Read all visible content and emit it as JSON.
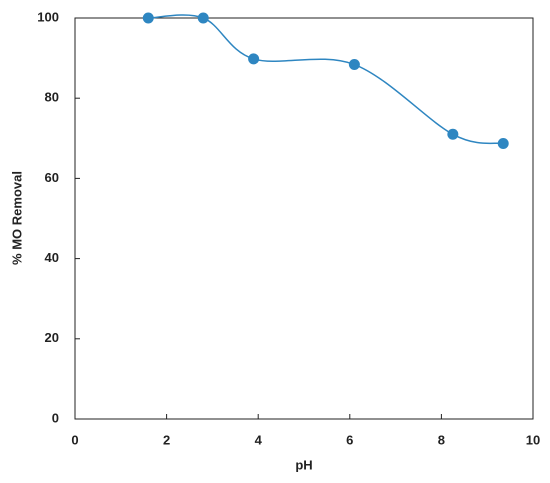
{
  "chart_data": {
    "type": "scatter",
    "x_label": "pH",
    "y_label": "% MO  Removal",
    "series": [
      {
        "name": "% MO Removal",
        "color": "#2e86c1",
        "x": [
          1.6,
          2.8,
          3.9,
          6.1,
          8.25,
          9.35
        ],
        "values": [
          100,
          100,
          89.8,
          88.4,
          71,
          68.7
        ]
      }
    ],
    "smooth": true,
    "xlim": [
      0,
      10
    ],
    "xticks": [
      0,
      2,
      4,
      6,
      8,
      10
    ],
    "ylim": [
      0,
      100
    ],
    "yticks": [
      0,
      20,
      40,
      60,
      80,
      100
    ]
  }
}
